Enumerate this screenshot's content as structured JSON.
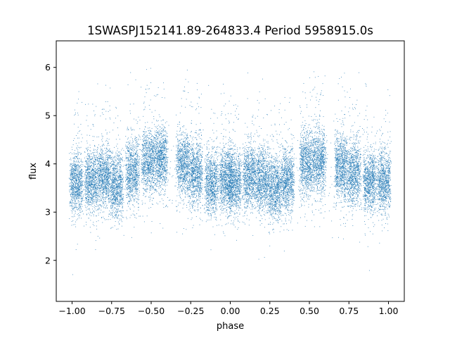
{
  "chart_data": {
    "type": "scatter",
    "title": "1SWASPJ152141.89-264833.4 Period 5958915.0s",
    "xlabel": "phase",
    "ylabel": "flux",
    "xlim": [
      -1.1,
      1.1
    ],
    "ylim": [
      1.15,
      6.55
    ],
    "xticks": [
      -1.0,
      -0.75,
      -0.5,
      -0.25,
      0.0,
      0.25,
      0.5,
      0.75,
      1.0
    ],
    "xtick_labels": [
      "−1.00",
      "−0.75",
      "−0.50",
      "−0.25",
      "0.00",
      "0.25",
      "0.50",
      "0.75",
      "1.00"
    ],
    "yticks": [
      2,
      3,
      4,
      5,
      6
    ],
    "ytick_labels": [
      "2",
      "3",
      "4",
      "5",
      "6"
    ],
    "grid": false,
    "legend": "none",
    "point_color": "#1f77b4",
    "phase_folded": true,
    "clusters": [
      {
        "center": -0.975,
        "mean_flux": 3.6
      },
      {
        "center": -0.88,
        "mean_flux": 3.65
      },
      {
        "center": -0.8,
        "mean_flux": 3.75
      },
      {
        "center": -0.72,
        "mean_flux": 3.55
      },
      {
        "center": -0.62,
        "mean_flux": 3.85
      },
      {
        "center": -0.52,
        "mean_flux": 4.05
      },
      {
        "center": -0.44,
        "mean_flux": 4.1
      },
      {
        "center": -0.3,
        "mean_flux": 4.0
      },
      {
        "center": -0.22,
        "mean_flux": 3.8
      },
      {
        "center": -0.12,
        "mean_flux": 3.6
      },
      {
        "center": -0.03,
        "mean_flux": 3.7
      },
      {
        "center": 0.025,
        "mean_flux": 3.6
      },
      {
        "center": 0.12,
        "mean_flux": 3.75
      },
      {
        "center": 0.2,
        "mean_flux": 3.65
      },
      {
        "center": 0.28,
        "mean_flux": 3.5
      },
      {
        "center": 0.36,
        "mean_flux": 3.65
      },
      {
        "center": 0.48,
        "mean_flux": 4.0
      },
      {
        "center": 0.56,
        "mean_flux": 4.05
      },
      {
        "center": 0.7,
        "mean_flux": 3.95
      },
      {
        "center": 0.78,
        "mean_flux": 3.8
      },
      {
        "center": 0.88,
        "mean_flux": 3.65
      },
      {
        "center": 0.97,
        "mean_flux": 3.65
      }
    ]
  }
}
